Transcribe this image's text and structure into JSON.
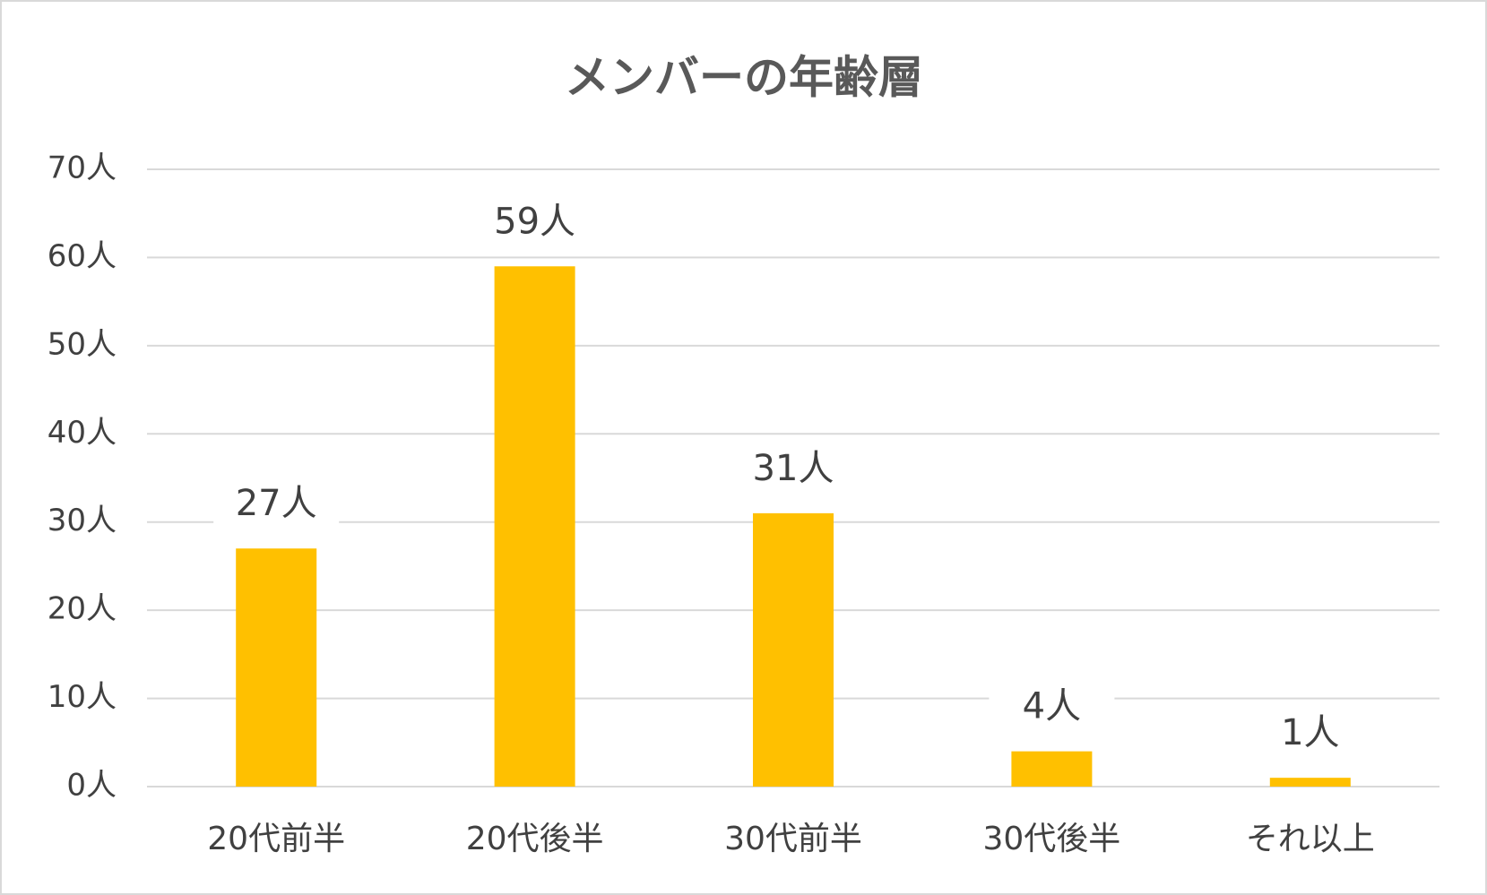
{
  "chart_data": {
    "type": "bar",
    "title": "メンバーの年齢層",
    "categories": [
      "20代前半",
      "20代後半",
      "30代前半",
      "30代後半",
      "それ以上"
    ],
    "values": [
      27,
      59,
      31,
      4,
      1
    ],
    "value_labels": [
      "27人",
      "59人",
      "31人",
      "4人",
      "1人"
    ],
    "color": "#ffc000",
    "ylim": [
      0,
      70
    ],
    "yticks": [
      {
        "value": 0,
        "label": "0人"
      },
      {
        "value": 10,
        "label": "10人"
      },
      {
        "value": 20,
        "label": "20人"
      },
      {
        "value": 30,
        "label": "30人"
      },
      {
        "value": 40,
        "label": "40人"
      },
      {
        "value": 50,
        "label": "50人"
      },
      {
        "value": 60,
        "label": "60人"
      },
      {
        "value": 70,
        "label": "70人"
      }
    ],
    "grid": true
  }
}
